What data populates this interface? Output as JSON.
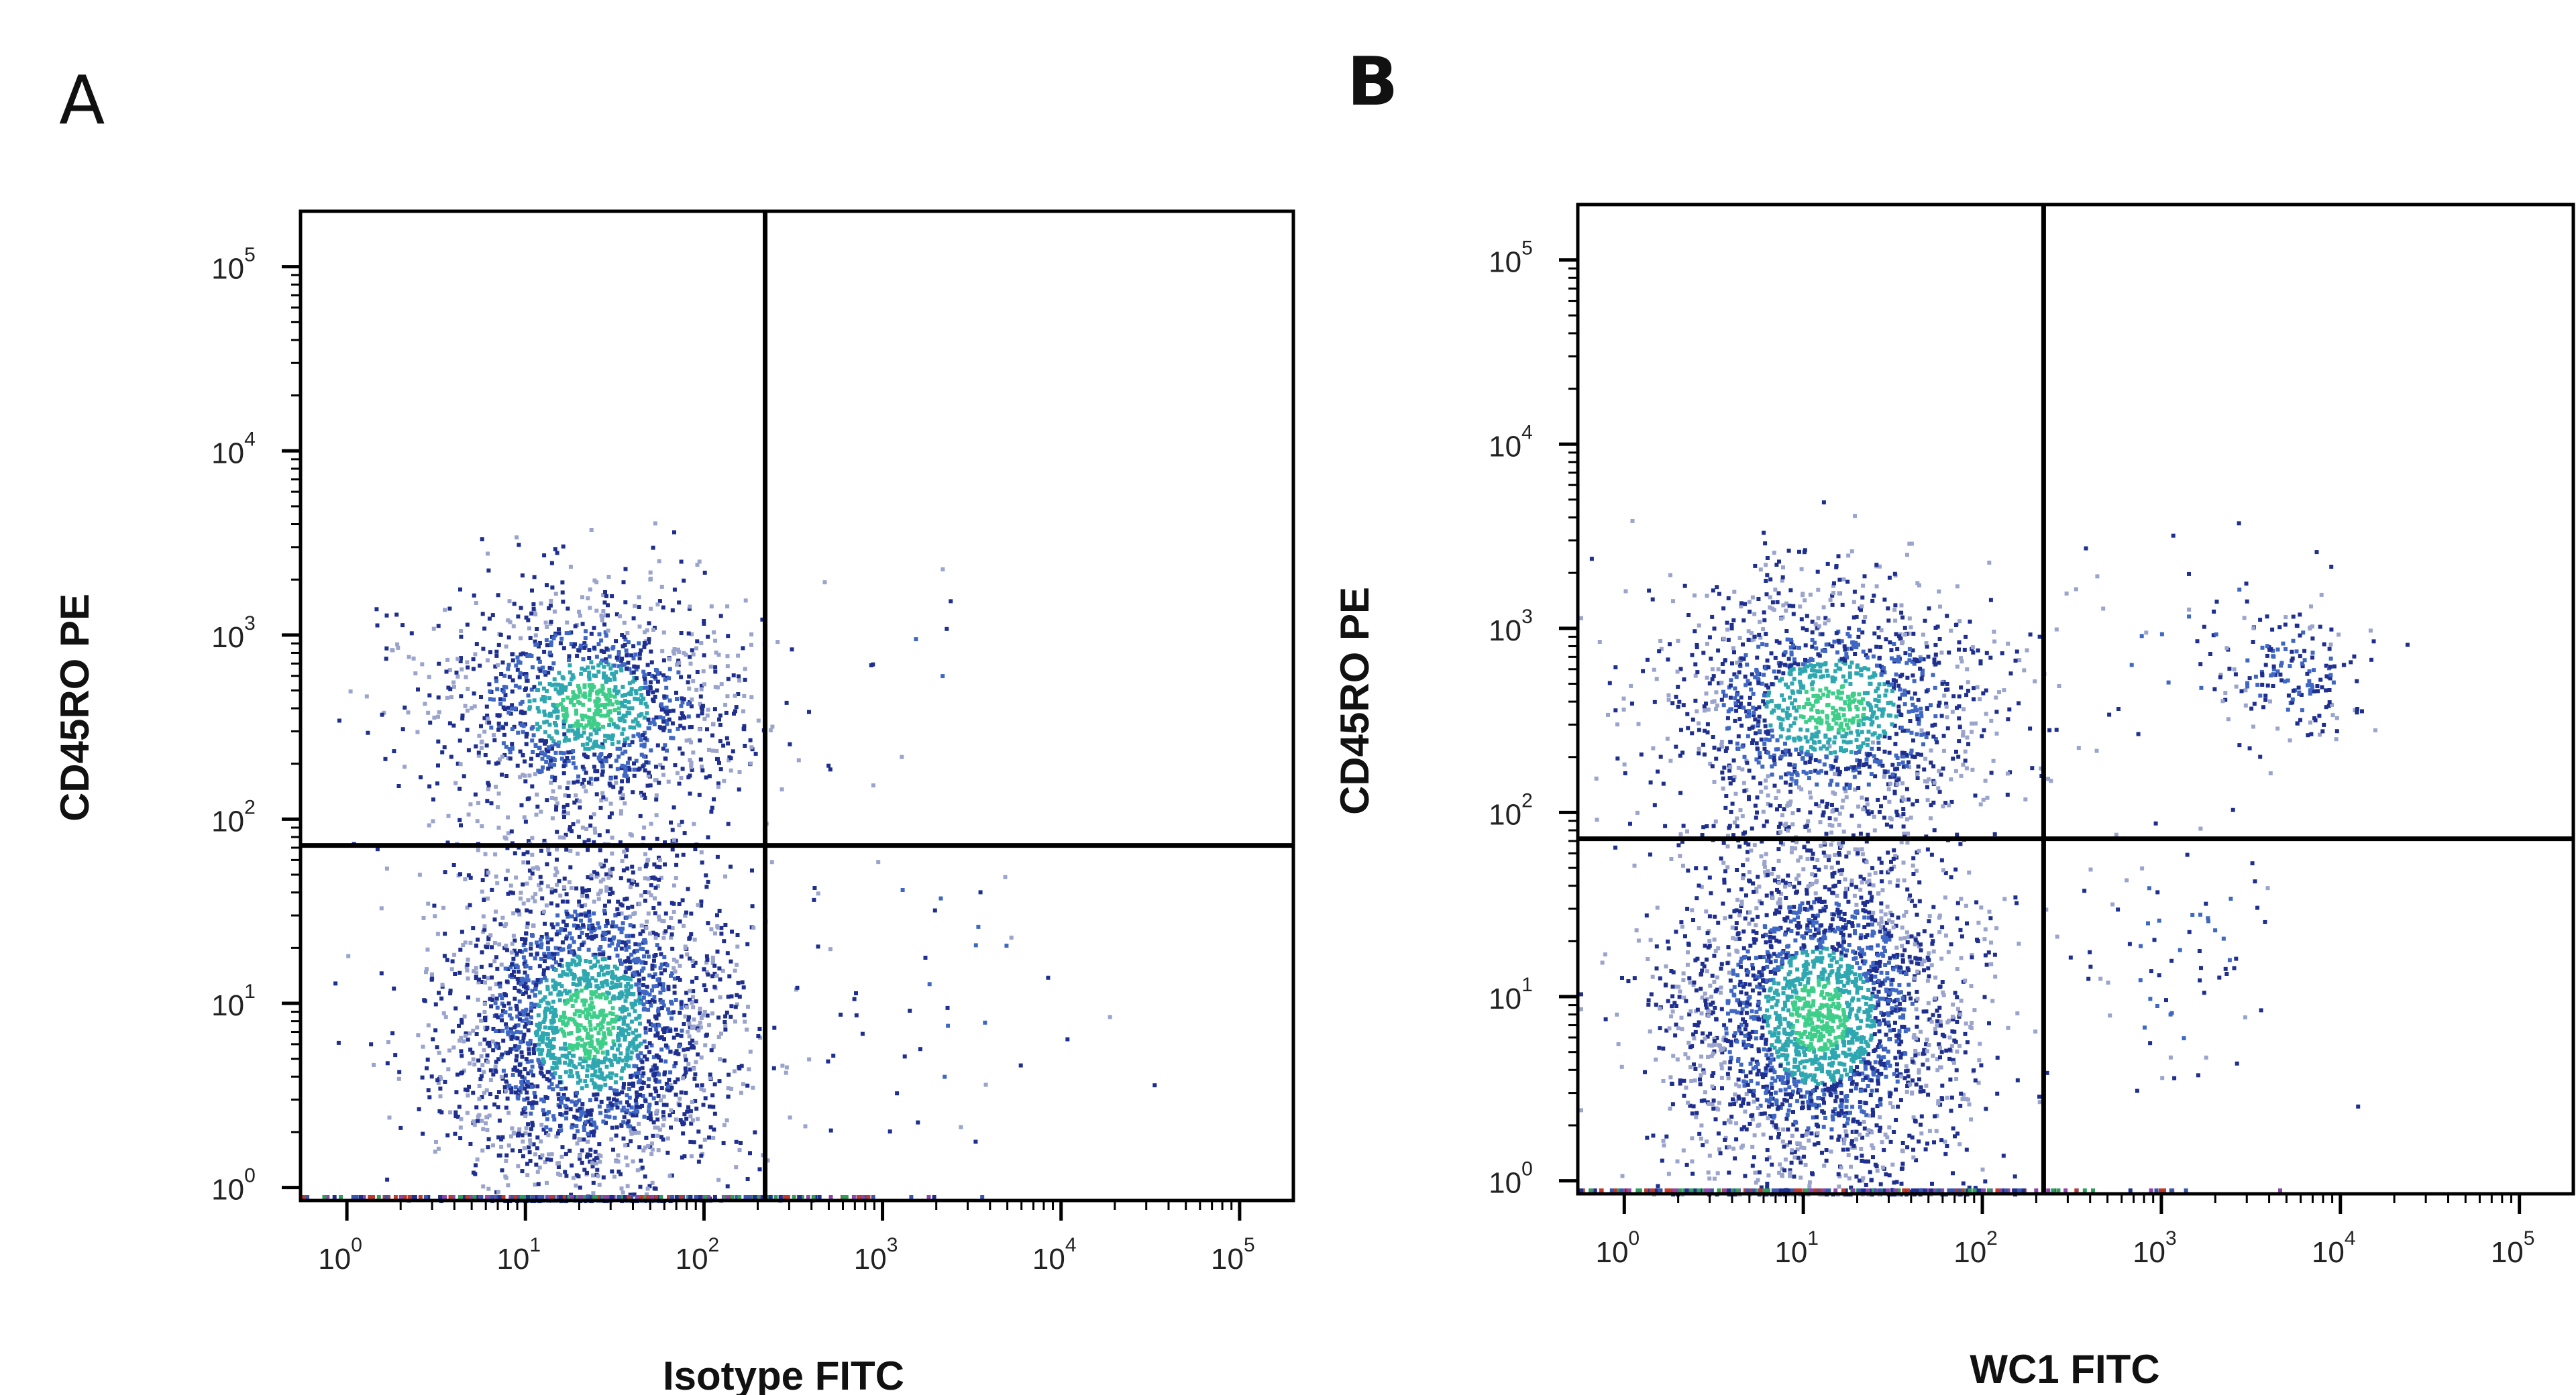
{
  "panels": [
    {
      "letter": "A",
      "xlabel": "Isotype FITC",
      "ylabel": "CD45RO PE"
    },
    {
      "letter": "B",
      "xlabel": "WC1 FITC",
      "ylabel": "CD45RO PE"
    }
  ],
  "colors": {
    "low_density": "#1f2f8f",
    "mid_density": "#3f68c4",
    "high_density": "#2fa7b0",
    "peak_density": "#3fce8a",
    "sparse": "#9aa4cc",
    "axis": "#000000",
    "gate": "#000000"
  },
  "chart_data": [
    {
      "type": "scatter",
      "title": "",
      "xlabel": "Isotype FITC",
      "ylabel": "CD45RO PE",
      "xscale": "log",
      "yscale": "log",
      "xlim": [
        0.55,
        200000
      ],
      "ylim": [
        0.85,
        200000
      ],
      "x_tick_labels": [
        "10^0",
        "10^1",
        "10^2",
        "10^3",
        "10^4",
        "10^5"
      ],
      "y_tick_labels": [
        "10^0",
        "10^1",
        "10^2",
        "10^3",
        "10^4",
        "10^5"
      ],
      "quadrant_gate": {
        "x": 220,
        "y": 72
      },
      "clusters": [
        {
          "name": "",
          "center_x": 22,
          "center_y": 8,
          "spread_log_x": 0.42,
          "spread_log_y": 0.5,
          "n": 2600
        },
        {
          "name": "",
          "center_x": 22,
          "center_y": 420,
          "spread_log_x": 0.45,
          "spread_log_y": 0.33,
          "n": 1400
        },
        {
          "name": "",
          "center_x": 1500,
          "center_y": 12,
          "spread_log_x": 0.45,
          "spread_log_y": 0.45,
          "n": 40
        },
        {
          "name": "",
          "center_x": 900,
          "center_y": 700,
          "spread_log_x": 0.35,
          "spread_log_y": 0.3,
          "n": 12
        }
      ]
    },
    {
      "type": "scatter",
      "title": "",
      "xlabel": "WC1 FITC",
      "ylabel": "CD45RO PE",
      "xscale": "log",
      "yscale": "log",
      "xlim": [
        0.55,
        200000
      ],
      "ylim": [
        0.85,
        200000
      ],
      "x_tick_labels": [
        "10^0",
        "10^1",
        "10^2",
        "10^3",
        "10^4",
        "10^5"
      ],
      "y_tick_labels": [
        "10^0",
        "10^1",
        "10^2",
        "10^3",
        "10^4",
        "10^5"
      ],
      "quadrant_gate": {
        "x": 220,
        "y": 72
      },
      "clusters": [
        {
          "name": "",
          "center_x": 12,
          "center_y": 8,
          "spread_log_x": 0.42,
          "spread_log_y": 0.5,
          "n": 2700
        },
        {
          "name": "",
          "center_x": 14,
          "center_y": 380,
          "spread_log_x": 0.5,
          "spread_log_y": 0.35,
          "n": 1500
        },
        {
          "name": "",
          "center_x": 5200,
          "center_y": 600,
          "spread_log_x": 0.22,
          "spread_log_y": 0.18,
          "n": 180
        },
        {
          "name": "",
          "center_x": 1200,
          "center_y": 18,
          "spread_log_x": 0.3,
          "spread_log_y": 0.4,
          "n": 70
        },
        {
          "name": "",
          "center_x": 1500,
          "center_y": 900,
          "spread_log_x": 0.4,
          "spread_log_y": 0.3,
          "n": 30
        }
      ]
    }
  ]
}
